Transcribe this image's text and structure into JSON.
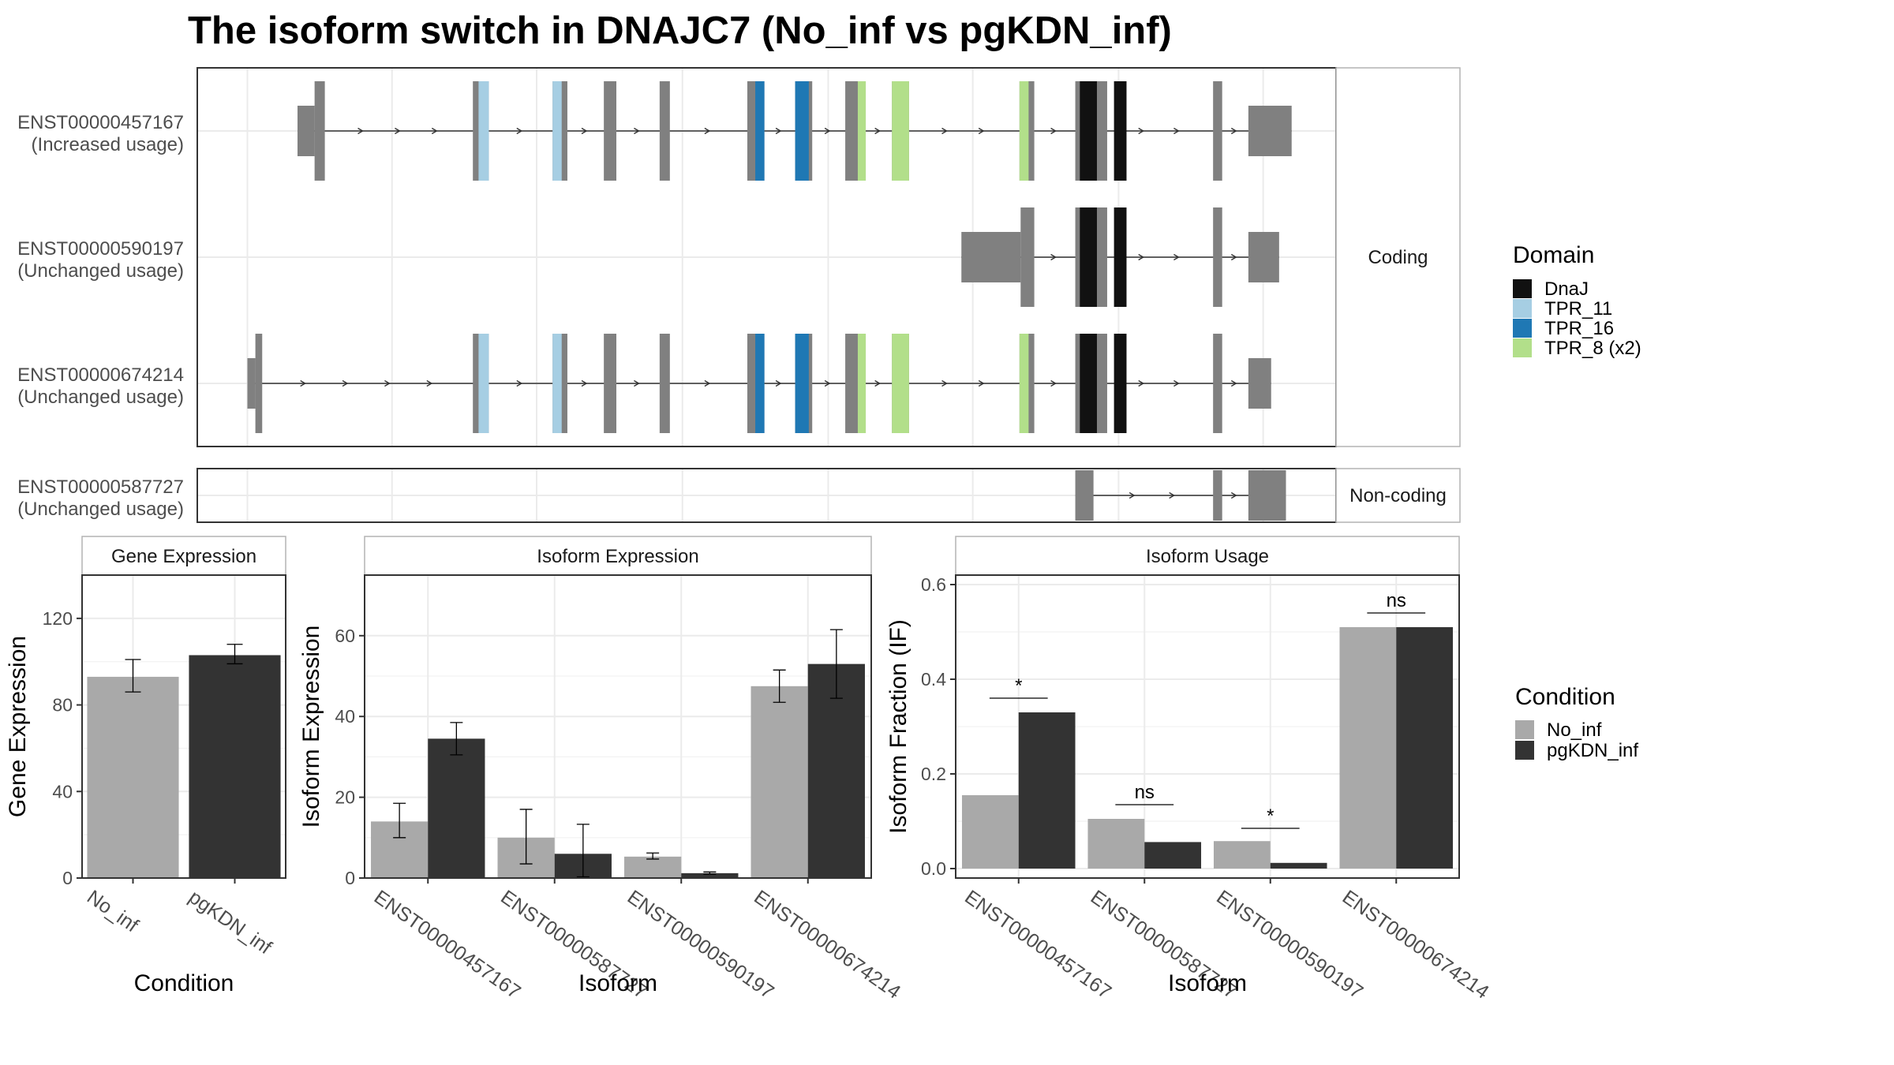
{
  "title": "The isoform switch in DNAJC7 (No_inf vs pgKDN_inf)",
  "colors": {
    "exon": "#808080",
    "DnaJ": "#111111",
    "TPR_11": "#a6cee3",
    "TPR_16": "#1f78b4",
    "TPR_8 (x2)": "#b2df8a",
    "No_inf": "#a9a9a9",
    "pgKDN_inf": "#333333",
    "grid": "#ebebeb",
    "frame": "#333333",
    "strip_border": "#b3b3b3"
  },
  "structure": {
    "facets": [
      "Coding",
      "Non-coding"
    ],
    "isoforms": [
      {
        "id": "ENST00000457167",
        "usage": "(Increased usage)",
        "facet": "Coding",
        "utr": [
          [
            0.088,
            0.103
          ],
          [
            0.923,
            0.961
          ]
        ],
        "exons": [
          [
            0.103,
            0.112
          ],
          [
            0.242,
            0.256
          ],
          [
            0.312,
            0.325
          ],
          [
            0.357,
            0.368
          ],
          [
            0.406,
            0.415
          ],
          [
            0.483,
            0.498
          ],
          [
            0.525,
            0.54
          ],
          [
            0.569,
            0.587
          ],
          [
            0.61,
            0.625
          ],
          [
            0.722,
            0.735
          ],
          [
            0.771,
            0.799
          ],
          [
            0.892,
            0.9
          ]
        ],
        "domains": [
          {
            "type": "TPR_11",
            "range": [
              0.247,
              0.256
            ]
          },
          {
            "type": "TPR_11",
            "range": [
              0.312,
              0.32
            ]
          },
          {
            "type": "TPR_16",
            "range": [
              0.49,
              0.498
            ]
          },
          {
            "type": "TPR_16",
            "range": [
              0.525,
              0.537
            ]
          },
          {
            "type": "TPR_8 (x2)",
            "range": [
              0.58,
              0.587
            ]
          },
          {
            "type": "TPR_8 (x2)",
            "range": [
              0.61,
              0.625
            ]
          },
          {
            "type": "TPR_8 (x2)",
            "range": [
              0.722,
              0.73
            ]
          },
          {
            "type": "DnaJ",
            "range": [
              0.775,
              0.79
            ]
          },
          {
            "type": "DnaJ",
            "range": [
              0.805,
              0.816
            ]
          }
        ]
      },
      {
        "id": "ENST00000590197",
        "usage": "(Unchanged usage)",
        "facet": "Coding",
        "utr": [
          [
            0.671,
            0.723
          ],
          [
            0.923,
            0.95
          ]
        ],
        "exons": [
          [
            0.723,
            0.735
          ],
          [
            0.771,
            0.799
          ],
          [
            0.892,
            0.9
          ]
        ],
        "domains": [
          {
            "type": "DnaJ",
            "range": [
              0.775,
              0.79
            ]
          },
          {
            "type": "DnaJ",
            "range": [
              0.805,
              0.816
            ]
          }
        ]
      },
      {
        "id": "ENST00000674214",
        "usage": "(Unchanged usage)",
        "facet": "Coding",
        "utr": [
          [
            0.044,
            0.051
          ],
          [
            0.923,
            0.943
          ]
        ],
        "exons": [
          [
            0.051,
            0.057
          ],
          [
            0.242,
            0.256
          ],
          [
            0.312,
            0.325
          ],
          [
            0.357,
            0.368
          ],
          [
            0.406,
            0.415
          ],
          [
            0.483,
            0.498
          ],
          [
            0.525,
            0.54
          ],
          [
            0.569,
            0.587
          ],
          [
            0.61,
            0.625
          ],
          [
            0.722,
            0.735
          ],
          [
            0.771,
            0.799
          ],
          [
            0.892,
            0.9
          ]
        ],
        "domains": [
          {
            "type": "TPR_11",
            "range": [
              0.247,
              0.256
            ]
          },
          {
            "type": "TPR_11",
            "range": [
              0.312,
              0.32
            ]
          },
          {
            "type": "TPR_16",
            "range": [
              0.49,
              0.498
            ]
          },
          {
            "type": "TPR_16",
            "range": [
              0.525,
              0.537
            ]
          },
          {
            "type": "TPR_8 (x2)",
            "range": [
              0.58,
              0.587
            ]
          },
          {
            "type": "TPR_8 (x2)",
            "range": [
              0.61,
              0.625
            ]
          },
          {
            "type": "TPR_8 (x2)",
            "range": [
              0.722,
              0.73
            ]
          },
          {
            "type": "DnaJ",
            "range": [
              0.775,
              0.79
            ]
          },
          {
            "type": "DnaJ",
            "range": [
              0.805,
              0.816
            ]
          }
        ]
      },
      {
        "id": "ENST00000587727",
        "usage": "(Unchanged usage)",
        "facet": "Non-coding",
        "utr": [],
        "exons": [
          [
            0.771,
            0.787
          ],
          [
            0.892,
            0.9
          ],
          [
            0.923,
            0.956
          ]
        ],
        "domains": []
      }
    ]
  },
  "domain_legend": {
    "title": "Domain",
    "entries": [
      "DnaJ",
      "TPR_11",
      "TPR_16",
      "TPR_8 (x2)"
    ]
  },
  "condition_legend": {
    "title": "Condition",
    "entries": [
      "No_inf",
      "pgKDN_inf"
    ]
  },
  "chart_data": [
    {
      "type": "bar",
      "title": "Gene Expression",
      "xlabel": "Condition",
      "ylabel": "Gene Expression",
      "ylim": [
        0,
        140
      ],
      "yticks": [
        0,
        40,
        80,
        120
      ],
      "categories": [
        "No_inf",
        "pgKDN_inf"
      ],
      "values": [
        93,
        103
      ],
      "errors": [
        [
          86,
          101
        ],
        [
          99,
          108
        ]
      ],
      "colors": [
        "No_inf",
        "pgKDN_inf"
      ],
      "grid": true
    },
    {
      "type": "bar",
      "title": "Isoform Expression",
      "xlabel": "Isoform",
      "ylabel": "Isoform Expression",
      "ylim": [
        0,
        75
      ],
      "yticks": [
        0,
        20,
        40,
        60
      ],
      "categories": [
        "ENST00000457167",
        "ENST00000587727",
        "ENST00000590197",
        "ENST00000674214"
      ],
      "series": [
        {
          "name": "No_inf",
          "values": [
            14,
            10,
            5.3,
            47.5
          ],
          "errors": [
            [
              10,
              18.5
            ],
            [
              3.5,
              17
            ],
            [
              4.7,
              6.2
            ],
            [
              43.5,
              51.5
            ]
          ]
        },
        {
          "name": "pgKDN_inf",
          "values": [
            34.5,
            6,
            1.2,
            53
          ],
          "errors": [
            [
              30.5,
              38.5
            ],
            [
              0.3,
              13.3
            ],
            [
              1.0,
              1.5
            ],
            [
              44.5,
              61.5
            ]
          ]
        }
      ],
      "grid": true
    },
    {
      "type": "bar",
      "title": "Isoform Usage",
      "xlabel": "Isoform",
      "ylabel": "Isoform Fraction (IF)",
      "ylim": [
        -0.02,
        0.62
      ],
      "yticks": [
        0.0,
        0.2,
        0.4,
        0.6
      ],
      "categories": [
        "ENST00000457167",
        "ENST00000587727",
        "ENST00000590197",
        "ENST00000674214"
      ],
      "series": [
        {
          "name": "No_inf",
          "values": [
            0.155,
            0.105,
            0.058,
            0.51
          ]
        },
        {
          "name": "pgKDN_inf",
          "values": [
            0.33,
            0.056,
            0.012,
            0.51
          ]
        }
      ],
      "significance": [
        {
          "category": "ENST00000457167",
          "label": "*",
          "y": 0.36
        },
        {
          "category": "ENST00000587727",
          "label": "ns",
          "y": 0.135
        },
        {
          "category": "ENST00000590197",
          "label": "*",
          "y": 0.085
        },
        {
          "category": "ENST00000674214",
          "label": "ns",
          "y": 0.54
        }
      ],
      "grid": true
    }
  ]
}
